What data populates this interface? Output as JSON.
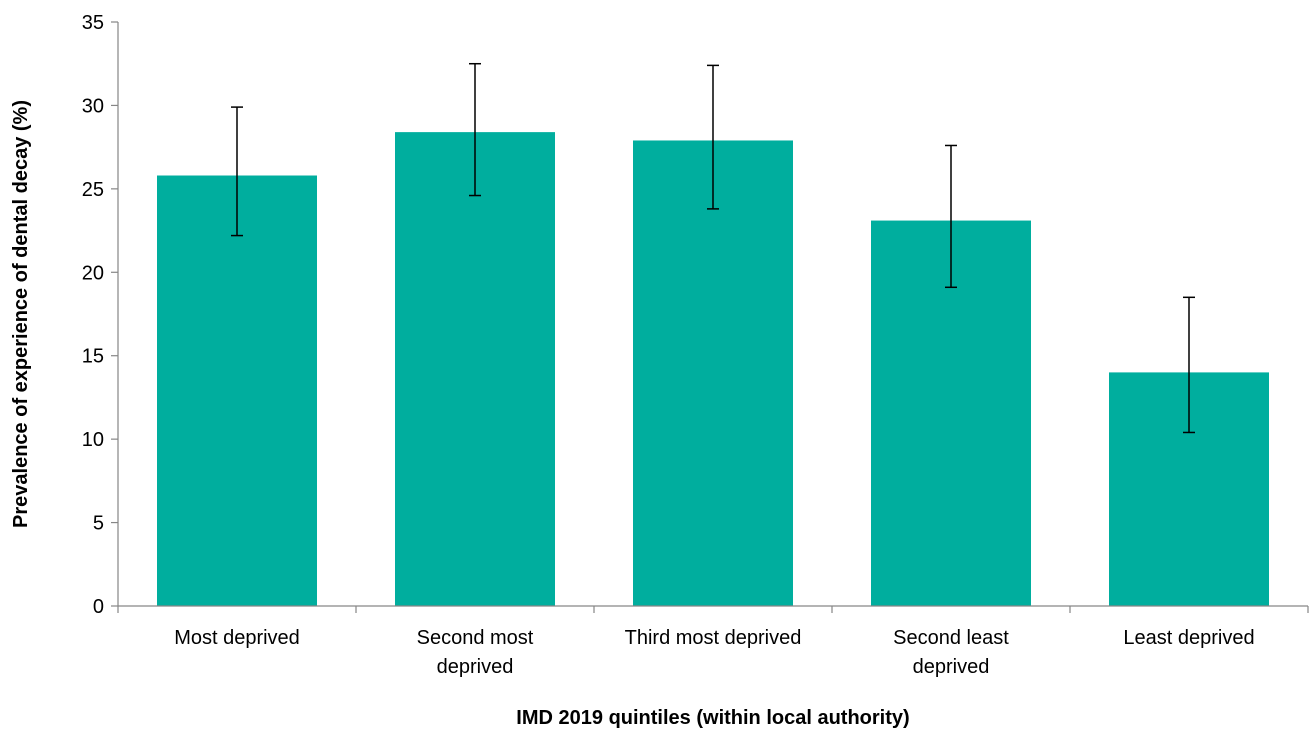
{
  "chart_data": {
    "type": "bar",
    "title": "",
    "xlabel": "IMD 2019 quintiles (within local authority)",
    "ylabel": "Prevalence of experience of dental decay (%)",
    "ylim": [
      0,
      35
    ],
    "yticks": [
      0,
      5,
      10,
      15,
      20,
      25,
      30,
      35
    ],
    "grid": false,
    "legend": "none",
    "bar_color": "#00ae9e",
    "error_bar_color": "#000000",
    "categories": [
      [
        "Most deprived"
      ],
      [
        "Second most",
        "deprived"
      ],
      [
        "Third most deprived"
      ],
      [
        "Second least",
        "deprived"
      ],
      [
        "Least deprived"
      ]
    ],
    "values": [
      25.8,
      28.4,
      27.9,
      23.1,
      14.0
    ],
    "error_low": [
      22.2,
      24.6,
      23.8,
      19.1,
      10.4
    ],
    "error_high": [
      29.9,
      32.5,
      32.4,
      27.6,
      18.5
    ]
  }
}
